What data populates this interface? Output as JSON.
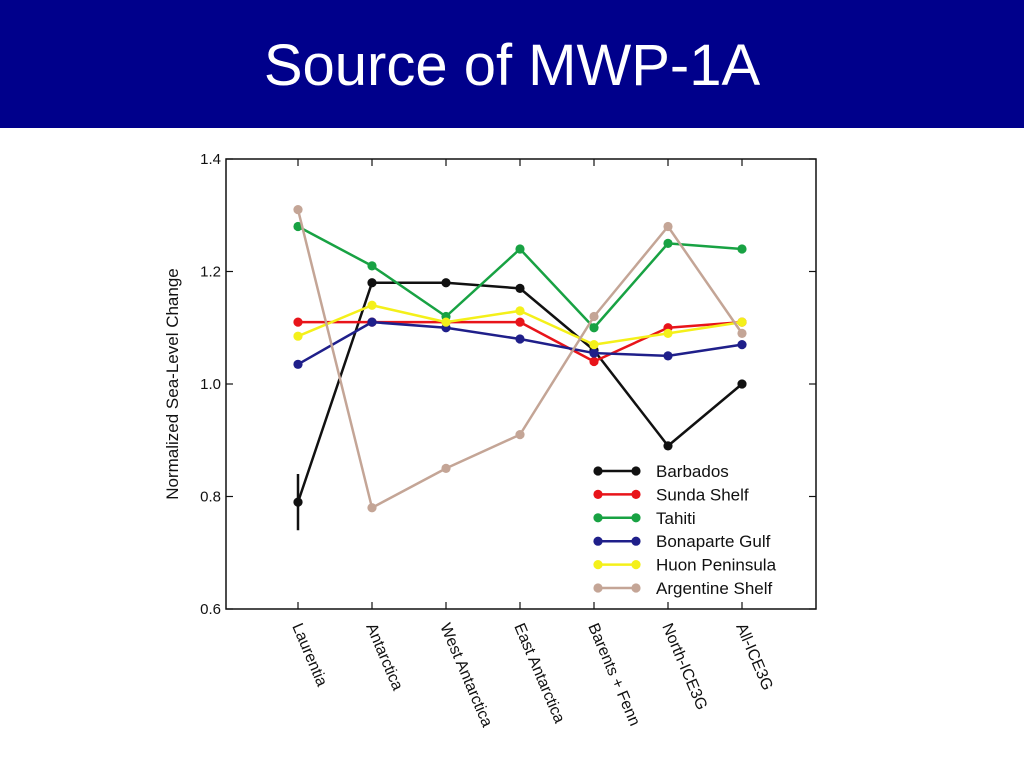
{
  "slide": {
    "title": "Source of MWP-1A"
  },
  "colors": {
    "title_bar": "#00008b",
    "title_text": "#ffffff",
    "Barbados": "#111111",
    "Sunda Shelf": "#e8141a",
    "Tahiti": "#18a243",
    "Bonaparte Gulf": "#1f1f8a",
    "Huon Peninsula": "#f4f01a",
    "Argentine Shelf": "#c4a596"
  },
  "chart_data": {
    "type": "line",
    "title": "",
    "xlabel": "",
    "ylabel": "Normalized Sea-Level Change",
    "ylim": [
      0.6,
      1.4
    ],
    "yticks": [
      "0.6",
      "0.8",
      "1.0",
      "1.2",
      "1.4"
    ],
    "categories": [
      "Laurentia",
      "Antarctica",
      "West Antarctica",
      "East Antarctica",
      "Barents + Fenn",
      "North-ICE3G",
      "All-ICE3G"
    ],
    "legend_position": "bottom-right",
    "grid": false,
    "series": [
      {
        "name": "Barbados",
        "values": [
          0.79,
          1.18,
          1.18,
          1.17,
          1.06,
          0.89,
          1.0
        ],
        "error_bar": {
          "index": 0,
          "low": 0.74,
          "high": 0.84
        }
      },
      {
        "name": "Sunda Shelf",
        "values": [
          1.11,
          1.11,
          1.11,
          1.11,
          1.04,
          1.1,
          1.11
        ]
      },
      {
        "name": "Tahiti",
        "values": [
          1.28,
          1.21,
          1.12,
          1.24,
          1.1,
          1.25,
          1.24
        ]
      },
      {
        "name": "Bonaparte Gulf",
        "values": [
          1.035,
          1.11,
          1.1,
          1.08,
          1.055,
          1.05,
          1.07
        ]
      },
      {
        "name": "Huon Peninsula",
        "values": [
          1.085,
          1.14,
          1.11,
          1.13,
          1.07,
          1.09,
          1.11
        ]
      },
      {
        "name": "Argentine Shelf",
        "values": [
          1.31,
          0.78,
          0.85,
          0.91,
          1.12,
          1.28,
          1.09
        ]
      }
    ]
  }
}
